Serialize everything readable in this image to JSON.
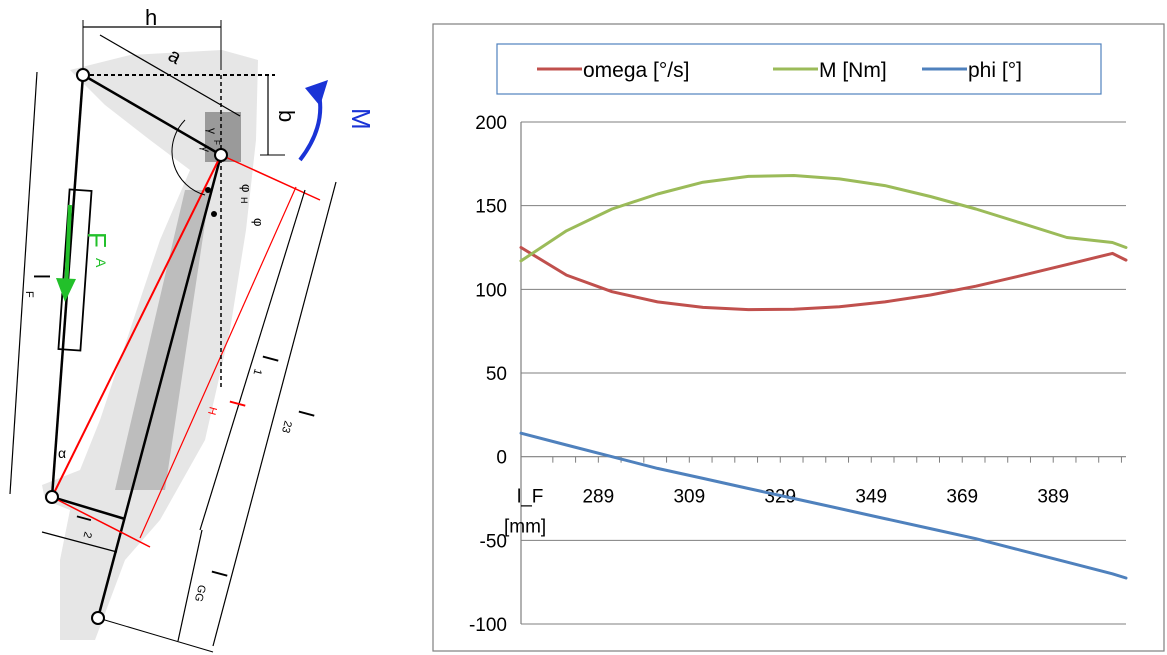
{
  "diagram": {
    "labels": {
      "h": "h",
      "a": "a",
      "b": "b",
      "M": "M",
      "F": "F",
      "A": "A",
      "l_F": "l",
      "l_F_sub": "F",
      "l_1": "l",
      "l_1_sub": "1",
      "l_H": "l",
      "l_H_sub": "H",
      "l_23": "l",
      "l_23_sub": "23",
      "l_2": "l",
      "l_2_sub": "2",
      "l_GG": "l",
      "l_GG_sub": "GG",
      "alpha": "α",
      "phi": "φ",
      "phi_H": "φ",
      "phi_H_sub": "H",
      "gamma": "γ",
      "gamma_F": "γ",
      "gamma_F_sub": "F"
    },
    "colors": {
      "force_arrow": "#22c02a",
      "moment_arrow": "#1a33d6",
      "red_lines": "#ff0000",
      "links": "#000000",
      "body_gray": "#e6e6e6",
      "strut_gray": "#bdbdbd"
    }
  },
  "chart_data": {
    "type": "line",
    "title": "",
    "xlabel": "l_F\n[mm]",
    "xlabel_lines": [
      "l_F",
      "[mm]"
    ],
    "ylabel": "",
    "ylim": [
      -100,
      200
    ],
    "yticks": [
      -100,
      -50,
      0,
      50,
      100,
      150,
      200
    ],
    "xlim": [
      272,
      405
    ],
    "xtick_labels": [
      289,
      309,
      329,
      349,
      369,
      389
    ],
    "grid": true,
    "legend_position": "top",
    "x": [
      272,
      282,
      292,
      302,
      312,
      322,
      332,
      342,
      352,
      362,
      372,
      382,
      392,
      402,
      405
    ],
    "series": [
      {
        "name": "omega [°/s]",
        "color": "#c0504d",
        "values": [
          125,
          108.5,
          98.6,
          92.5,
          89.2,
          87.9,
          88.1,
          89.6,
          92.5,
          96.6,
          101.9,
          108.2,
          114.8,
          121.5,
          117.5
        ]
      },
      {
        "name": "M [Nm]",
        "color": "#9bbb59",
        "values": [
          117,
          135,
          148,
          157,
          164,
          167.5,
          168,
          166,
          162,
          155.5,
          148,
          139.5,
          131,
          128,
          125
        ]
      },
      {
        "name": "phi [°]",
        "color": "#4f81bd",
        "values": [
          14,
          7,
          0,
          -7,
          -13,
          -19,
          -25,
          -31,
          -37,
          -43,
          -49,
          -56,
          -63,
          -70,
          -72.5
        ]
      }
    ]
  }
}
